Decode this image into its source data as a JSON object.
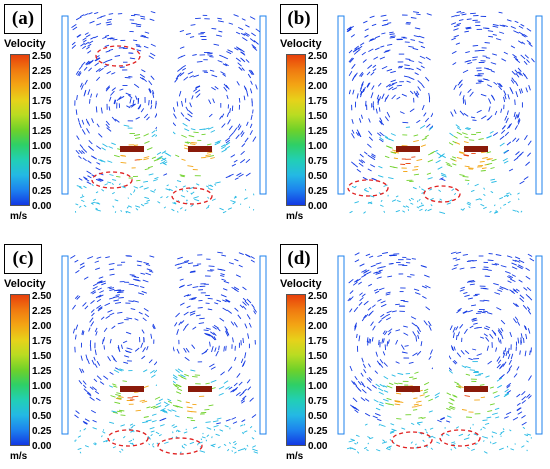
{
  "panels": [
    {
      "id": "a",
      "label": "(a)"
    },
    {
      "id": "b",
      "label": "(b)"
    },
    {
      "id": "c",
      "label": "(c)"
    },
    {
      "id": "d",
      "label": "(d)"
    }
  ],
  "legend": {
    "title": "Velocity",
    "unit": "m/s",
    "ticks": [
      "2.50",
      "2.25",
      "2.00",
      "1.75",
      "1.50",
      "1.25",
      "1.00",
      "0.75",
      "0.50",
      "0.25",
      "0.00"
    ]
  },
  "colors": {
    "max": "#e8400b",
    "high": "#f3a514",
    "mid": "#6fd12a",
    "low": "#24b9e4",
    "min": "#1339e3",
    "annotation": "#e02020"
  }
}
